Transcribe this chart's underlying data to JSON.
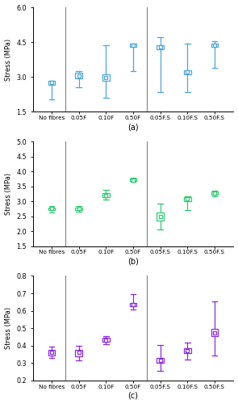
{
  "panels": [
    {
      "label": "(a)",
      "ylabel": "Stress (MPa)",
      "ylim": [
        1.5,
        6.0
      ],
      "yticks": [
        1.5,
        3.0,
        4.5,
        6.0
      ],
      "color": "#4da6d9",
      "categories": [
        "No fibres",
        "0.05F",
        "0.10F",
        "0.50F",
        "0.05F.S",
        "0.10F.S",
        "0.50F.S"
      ],
      "means": [
        2.75,
        3.05,
        2.97,
        4.35,
        4.28,
        3.22,
        4.35
      ],
      "lower": [
        2.05,
        2.55,
        2.1,
        3.25,
        2.35,
        2.35,
        3.4
      ],
      "upper": [
        2.85,
        3.25,
        4.35,
        4.45,
        4.7,
        4.45,
        4.55
      ],
      "box_lower": [
        2.65,
        2.95,
        2.82,
        4.28,
        4.2,
        3.12,
        4.28
      ],
      "box_upper": [
        2.83,
        3.18,
        3.1,
        4.42,
        4.38,
        3.3,
        4.42
      ],
      "vlines": [
        0.5,
        3.5
      ]
    },
    {
      "label": "(b)",
      "ylabel": "Stress (MPa)",
      "ylim": [
        1.5,
        5.0
      ],
      "yticks": [
        1.5,
        2.0,
        2.5,
        3.0,
        3.5,
        4.0,
        4.5,
        5.0
      ],
      "color": "#2ecc71",
      "categories": [
        "No fibres",
        "0.05F",
        "0.10F",
        "0.50F",
        "0.05F.S",
        "0.10F.S",
        "0.50F.S"
      ],
      "means": [
        2.75,
        2.75,
        3.2,
        3.72,
        2.48,
        3.08,
        3.27
      ],
      "lower": [
        2.62,
        2.65,
        3.05,
        3.65,
        2.05,
        2.72,
        3.18
      ],
      "upper": [
        2.83,
        2.83,
        3.38,
        3.8,
        2.93,
        3.18,
        3.36
      ],
      "box_lower": [
        2.7,
        2.7,
        3.15,
        3.68,
        2.35,
        3.0,
        3.22
      ],
      "box_upper": [
        2.8,
        2.8,
        3.27,
        3.77,
        2.62,
        3.15,
        3.33
      ],
      "vlines": [
        0.5,
        3.5
      ]
    },
    {
      "label": "(c)",
      "ylabel": "Stress (MPa)",
      "ylim": [
        0.2,
        0.8
      ],
      "yticks": [
        0.2,
        0.3,
        0.4,
        0.5,
        0.6,
        0.7,
        0.8
      ],
      "color": "#8b2be2",
      "categories": [
        "No fibres",
        "0.05F",
        "0.10F",
        "0.50F",
        "0.05F.S",
        "0.10F.S",
        "0.50F.S"
      ],
      "means": [
        0.36,
        0.36,
        0.43,
        0.635,
        0.315,
        0.37,
        0.475
      ],
      "lower": [
        0.33,
        0.315,
        0.41,
        0.605,
        0.255,
        0.32,
        0.345
      ],
      "upper": [
        0.395,
        0.4,
        0.455,
        0.695,
        0.405,
        0.415,
        0.655
      ],
      "box_lower": [
        0.345,
        0.34,
        0.42,
        0.625,
        0.3,
        0.355,
        0.455
      ],
      "box_upper": [
        0.375,
        0.375,
        0.445,
        0.645,
        0.33,
        0.385,
        0.495
      ],
      "vlines": [
        0.5,
        3.5
      ]
    }
  ],
  "figsize": [
    2.95,
    5.0
  ],
  "dpi": 100
}
